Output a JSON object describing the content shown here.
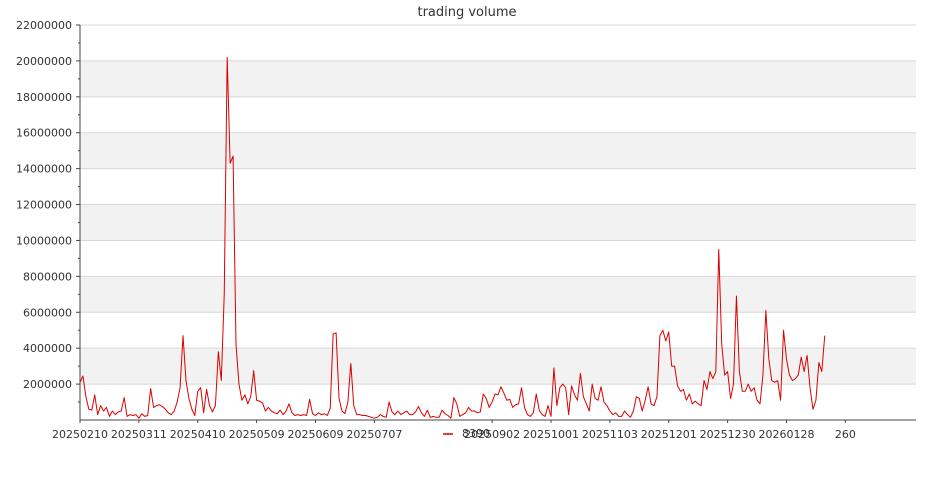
{
  "colors": {
    "series": "#dd0000",
    "band": "#f2f2f2",
    "grid": "#d8d8d8",
    "axis": "#444444",
    "text": "#333333"
  },
  "chart_data": {
    "type": "line",
    "title": "trading volume",
    "xlabel": "",
    "ylabel": "",
    "ylim": [
      0,
      22000000
    ],
    "yticks": [
      2000000,
      4000000,
      6000000,
      8000000,
      10000000,
      12000000,
      14000000,
      16000000,
      18000000,
      20000000,
      22000000
    ],
    "ytick_labels": [
      "2000000",
      "4000000",
      "6000000",
      "8000000",
      "10000000",
      "12000000",
      "14000000",
      "16000000",
      "18000000",
      "20000000",
      "22000000"
    ],
    "xtick_labels": [
      "20250210",
      "20250311",
      "20250410",
      "20250509",
      "20250609",
      "20250707",
      "20250902",
      "20251001",
      "20251103",
      "20251201",
      "20251230",
      "20260128",
      "260"
    ],
    "xtick_index": [
      0,
      20,
      40,
      60,
      80,
      100,
      140,
      160,
      180,
      200,
      220,
      240,
      260
    ],
    "grid": true,
    "legend_position": "bottom-center",
    "series": [
      {
        "name": "8390",
        "values": [
          2100000,
          2450000,
          1300000,
          600000,
          550000,
          1400000,
          300000,
          800000,
          500000,
          700000,
          200000,
          500000,
          300000,
          450000,
          500000,
          1250000,
          200000,
          300000,
          250000,
          300000,
          100000,
          350000,
          200000,
          250000,
          1750000,
          700000,
          800000,
          850000,
          750000,
          600000,
          400000,
          300000,
          500000,
          1000000,
          1800000,
          4700000,
          2200000,
          1200000,
          600000,
          250000,
          1600000,
          1800000,
          400000,
          1700000,
          800000,
          450000,
          800000,
          3800000,
          2200000,
          7000000,
          20200000,
          14300000,
          14700000,
          4200000,
          2000000,
          1100000,
          1400000,
          900000,
          1300000,
          2750000,
          1100000,
          1050000,
          950000,
          500000,
          700000,
          500000,
          400000,
          350000,
          550000,
          300000,
          500000,
          900000,
          400000,
          250000,
          300000,
          250000,
          300000,
          250000,
          1150000,
          350000,
          250000,
          400000,
          300000,
          350000,
          250000,
          650000,
          4800000,
          4850000,
          1200000,
          500000,
          350000,
          1000000,
          3150000,
          800000,
          300000,
          300000,
          250000,
          250000,
          200000,
          150000,
          100000,
          150000,
          300000,
          200000,
          150000,
          1000000,
          450000,
          300000,
          500000,
          300000,
          400000,
          500000,
          300000,
          300000,
          450000,
          750000,
          400000,
          200000,
          550000,
          150000,
          200000,
          150000,
          150000,
          550000,
          350000,
          250000,
          100000,
          1250000,
          900000,
          200000,
          300000,
          400000,
          700000,
          500000,
          500000,
          400000,
          450000,
          1450000,
          1200000,
          700000,
          1000000,
          1450000,
          1400000,
          1850000,
          1500000,
          1100000,
          1150000,
          700000,
          850000,
          900000,
          1800000,
          700000,
          300000,
          200000,
          400000,
          1450000,
          550000,
          300000,
          200000,
          800000,
          200000,
          2900000,
          800000,
          1800000,
          2000000,
          1800000,
          300000,
          1900000,
          1400000,
          1100000,
          2600000,
          1300000,
          900000,
          500000,
          2000000,
          1200000,
          1100000,
          1850000,
          1000000,
          800000,
          500000,
          300000,
          400000,
          200000,
          200000,
          500000,
          300000,
          150000,
          500000,
          1300000,
          1200000,
          500000,
          1100000,
          1850000,
          900000,
          800000,
          1300000,
          4700000,
          5000000,
          4400000,
          4900000,
          3000000,
          3000000,
          1900000,
          1600000,
          1700000,
          1100000,
          1450000,
          900000,
          1050000,
          900000,
          800000,
          2200000,
          1700000,
          2700000,
          2300000,
          2700000,
          9500000,
          4200000,
          2500000,
          2700000,
          1200000,
          2000000,
          6900000,
          2700000,
          1600000,
          1600000,
          2000000,
          1600000,
          1800000,
          1100000,
          900000,
          2500000,
          6100000,
          3400000,
          2200000,
          2100000,
          2200000,
          1100000,
          5000000,
          3400000,
          2500000,
          2200000,
          2300000,
          2500000,
          3500000,
          2700000,
          3600000,
          1800000,
          600000,
          1100000,
          3200000,
          2700000,
          4700000
        ]
      }
    ]
  }
}
